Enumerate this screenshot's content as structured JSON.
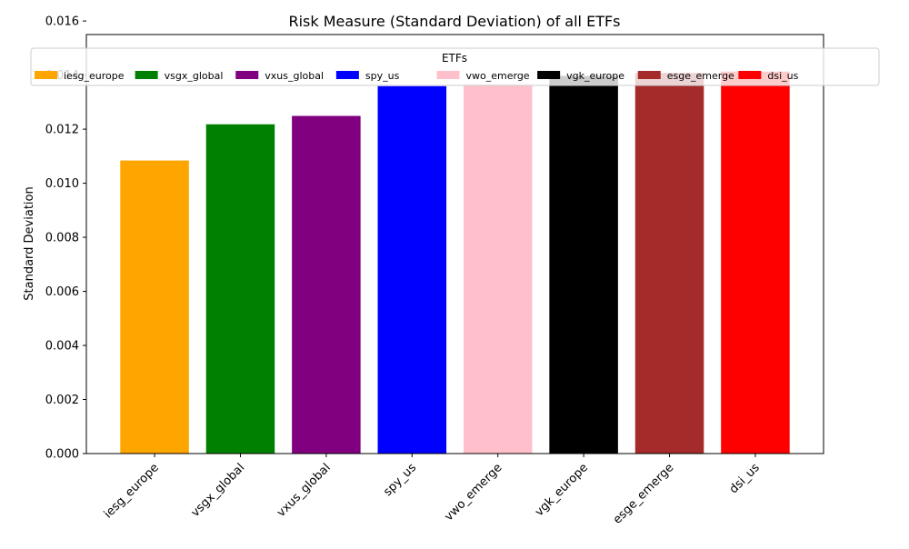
{
  "chart_data": {
    "type": "bar",
    "title": "Risk Measure (Standard Deviation) of all ETFs",
    "xlabel": "",
    "ylabel": "Standard Deviation",
    "categories": [
      "iesg_europe",
      "vsgx_global",
      "vxus_global",
      "spy_us",
      "vwo_emerge",
      "vgk_europe",
      "esge_emerge",
      "dsi_us"
    ],
    "values": [
      0.01084,
      0.01218,
      0.01249,
      0.01359,
      0.01367,
      0.01397,
      0.01408,
      0.01413
    ],
    "colors": [
      "#ffa500",
      "#008000",
      "#800080",
      "#0000ff",
      "#ffc0cb",
      "#000000",
      "#a52a2a",
      "#ff0000"
    ],
    "ylim": [
      0,
      0.0155
    ],
    "yticks": [
      "0.000",
      "0.002",
      "0.004",
      "0.006",
      "0.008",
      "0.010",
      "0.012",
      "0.014",
      "0.016"
    ],
    "grid": false,
    "legend": {
      "title": "ETFs",
      "placement": "top",
      "columns": 8
    }
  }
}
